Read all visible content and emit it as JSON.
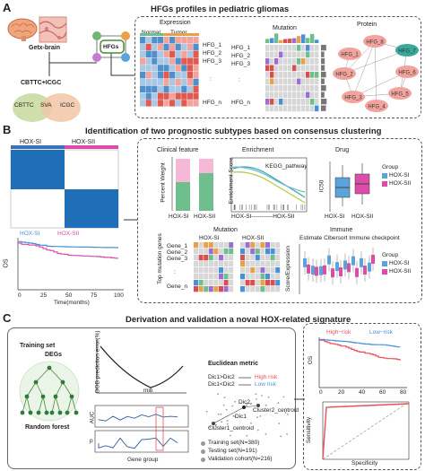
{
  "panelA": {
    "letter": "A",
    "title": "HFGs profiles in pediatric gliomas",
    "source1": "Getx-brain",
    "source2": "CBTTC+ICGC",
    "venn": [
      "CBTTC",
      "SVA",
      "ICGC"
    ],
    "hfgs_label": "HFGs",
    "expression": {
      "title": "Expression",
      "groups": [
        "Normal",
        "Tumor"
      ],
      "rows": [
        "HFG_1",
        "HFG_2",
        "HFG_3",
        ":",
        "HFG_n"
      ]
    },
    "mutation": {
      "title": "Mutation",
      "rows": [
        "HFG_1",
        "HFG_2",
        "HFG_3",
        ":",
        "HFG_n"
      ]
    },
    "protein": {
      "title": "Protein",
      "nodes": [
        "HFG_8",
        "HFG_7",
        "HFG_1",
        "HFG_6",
        "HFG_2",
        "HFG_3",
        "HFG_5",
        "HFG_4"
      ]
    }
  },
  "panelB": {
    "letter": "B",
    "title": "Identification of two prognostic subtypes based on consensus clustering",
    "clusters": [
      "HOX-SI",
      "HOX-SII"
    ],
    "km": {
      "legend": [
        "HOX-SI",
        "HOX-SII"
      ],
      "ylabel": "OS",
      "xlabel": "Time(months)",
      "xticks": [
        "0",
        "25",
        "50",
        "75",
        "100"
      ]
    },
    "clinical": {
      "title": "Clinical feature",
      "ylabel": "Percent Weight",
      "xticks": [
        "HOX-SI",
        "HOX-SII"
      ]
    },
    "enrichment": {
      "title": "Enrichment",
      "ylabel": "Enrichment Score",
      "pathway": "KEGG_pathway",
      "xlabel": "HOX-SI-----------HOX-SII"
    },
    "drug": {
      "title": "Drug",
      "ylabel": "IC50",
      "xticks": [
        "HOX-SI",
        "HOX-SII"
      ],
      "legend_title": "Group",
      "legend": [
        "HOX-SI",
        "HOX-SII"
      ]
    },
    "mutation": {
      "title": "Mutation",
      "groups": [
        "HOX-SI",
        "HOX-SII"
      ],
      "ylabel": "Top mutation genes",
      "rows": [
        "Gene_1",
        "Gene_2",
        "Gene_3",
        ":",
        "Gene_n"
      ]
    },
    "immune": {
      "title": "Immune",
      "subtitle": "Estimate Cibersort Immune checkpoint",
      "ylabel": "Score/Expression",
      "legend_title": "Group",
      "legend": [
        "HOX-SI",
        "HOX-SII"
      ]
    }
  },
  "panelC": {
    "letter": "C",
    "title": "Derivation and validation a noval HOX-related signature",
    "training": "Training set",
    "degs": "DEGs",
    "rf": "Random forest",
    "oob": {
      "ylabel": "OOB prediction error(%)",
      "min": "min"
    },
    "auc": {
      "ylabel": "AUC"
    },
    "p": {
      "ylabel": "p",
      "xlabel": "Gene group"
    },
    "euclid": {
      "title": "Euclidean metric",
      "rule1": "Dic1>Dic2",
      "rule2": "Dic1<Dic2",
      "high": "High risk",
      "low": "Low risk",
      "dic1": "Dic1",
      "dic2": "Dic2",
      "c1": "Cluster1_centroid",
      "c2": "Cluster2_centroid"
    },
    "sets": [
      "Training set(N=380)",
      "Testing set(N=191)",
      "Validation cohort(N=216)"
    ],
    "km": {
      "legend": [
        "High−risk",
        "Low−risk"
      ],
      "ylabel": "OS",
      "xticks": [
        "0",
        "20",
        "40",
        "60",
        "80"
      ]
    },
    "roc": {
      "ylabel": "Sensitivity",
      "xlabel": "Specificity"
    },
    "colors": {
      "high": "#e8505b",
      "low": "#4a90d9",
      "si": "#4a90d9",
      "sii": "#d94fa8"
    }
  }
}
